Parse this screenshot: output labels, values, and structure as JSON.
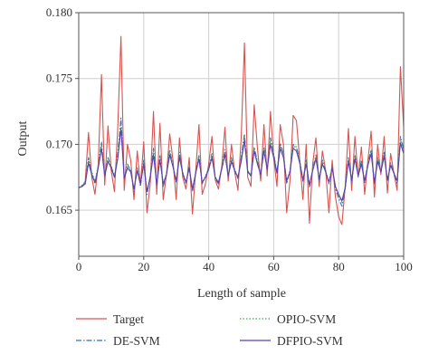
{
  "chart_data": {
    "type": "line",
    "xlabel": "Length of sample",
    "ylabel": "Output",
    "xlim": [
      0,
      100
    ],
    "ylim": [
      0.1615,
      0.18
    ],
    "x_ticks": [
      0,
      20,
      40,
      60,
      80,
      100
    ],
    "x_tick_labels": [
      "0",
      "20",
      "40",
      "60",
      "80",
      "100"
    ],
    "y_ticks": [
      0.165,
      0.17,
      0.175,
      0.18
    ],
    "y_tick_labels": [
      "0.165",
      "0.170",
      "0.175",
      "0.180"
    ],
    "grid": true,
    "legend_position": "bottom",
    "x": [
      0,
      1,
      2,
      3,
      4,
      5,
      6,
      7,
      8,
      9,
      10,
      11,
      12,
      13,
      14,
      15,
      16,
      17,
      18,
      19,
      20,
      21,
      22,
      23,
      24,
      25,
      26,
      27,
      28,
      29,
      30,
      31,
      32,
      33,
      34,
      35,
      36,
      37,
      38,
      39,
      40,
      41,
      42,
      43,
      44,
      45,
      46,
      47,
      48,
      49,
      50,
      51,
      52,
      53,
      54,
      55,
      56,
      57,
      58,
      59,
      60,
      61,
      62,
      63,
      64,
      65,
      66,
      67,
      68,
      69,
      70,
      71,
      72,
      73,
      74,
      75,
      76,
      77,
      78,
      79,
      80,
      81,
      82,
      83,
      84,
      85,
      86,
      87,
      88,
      89,
      90,
      91,
      92,
      93,
      94,
      95,
      96,
      97,
      98,
      99,
      100
    ],
    "series": [
      {
        "name": "Target",
        "color": "#d9534f",
        "dash": "solid",
        "values": [
          0.1667,
          0.1668,
          0.1672,
          0.1709,
          0.1675,
          0.1662,
          0.1685,
          0.1753,
          0.1669,
          0.1714,
          0.168,
          0.1664,
          0.1712,
          0.1782,
          0.1665,
          0.17,
          0.1688,
          0.1658,
          0.1695,
          0.1669,
          0.1702,
          0.1648,
          0.167,
          0.1725,
          0.1662,
          0.1716,
          0.1658,
          0.1677,
          0.1708,
          0.1688,
          0.1658,
          0.1705,
          0.1675,
          0.1666,
          0.169,
          0.1647,
          0.168,
          0.1715,
          0.1662,
          0.167,
          0.1685,
          0.1706,
          0.1673,
          0.1666,
          0.1683,
          0.1713,
          0.1672,
          0.17,
          0.1679,
          0.1665,
          0.1705,
          0.1777,
          0.1675,
          0.1668,
          0.173,
          0.1697,
          0.1672,
          0.1715,
          0.1676,
          0.1725,
          0.169,
          0.1668,
          0.1715,
          0.17,
          0.1648,
          0.1672,
          0.1722,
          0.1718,
          0.1688,
          0.1658,
          0.17,
          0.164,
          0.1685,
          0.1705,
          0.1668,
          0.1695,
          0.168,
          0.1648,
          0.1688,
          0.166,
          0.1645,
          0.1639,
          0.1668,
          0.1712,
          0.1665,
          0.1706,
          0.1675,
          0.1698,
          0.1662,
          0.1688,
          0.171,
          0.166,
          0.17,
          0.1677,
          0.1706,
          0.1663,
          0.1693,
          0.1678,
          0.1665,
          0.1759,
          0.1713
        ]
      },
      {
        "name": "DE-SVM",
        "color": "#3a6db5",
        "dash": "dashdot",
        "values": [
          0.1667,
          0.1668,
          0.167,
          0.169,
          0.1678,
          0.167,
          0.1683,
          0.1702,
          0.1676,
          0.169,
          0.1683,
          0.1675,
          0.1693,
          0.172,
          0.1674,
          0.1685,
          0.168,
          0.1664,
          0.1682,
          0.1668,
          0.1688,
          0.1662,
          0.1676,
          0.1697,
          0.1668,
          0.1692,
          0.1668,
          0.1677,
          0.1696,
          0.1684,
          0.1671,
          0.1694,
          0.1678,
          0.167,
          0.1683,
          0.1664,
          0.1678,
          0.1692,
          0.167,
          0.1675,
          0.1682,
          0.1693,
          0.1674,
          0.167,
          0.1682,
          0.1696,
          0.1676,
          0.169,
          0.168,
          0.1674,
          0.169,
          0.1708,
          0.168,
          0.1676,
          0.1698,
          0.1687,
          0.1677,
          0.1698,
          0.1681,
          0.1705,
          0.1693,
          0.1678,
          0.1701,
          0.1693,
          0.167,
          0.168,
          0.17,
          0.1698,
          0.1688,
          0.1672,
          0.1688,
          0.1667,
          0.1681,
          0.1692,
          0.1673,
          0.1688,
          0.168,
          0.167,
          0.1683,
          0.1666,
          0.1659,
          0.1653,
          0.1666,
          0.169,
          0.1672,
          0.1692,
          0.1676,
          0.1688,
          0.1671,
          0.1686,
          0.1696,
          0.167,
          0.169,
          0.1679,
          0.1694,
          0.1672,
          0.1686,
          0.1678,
          0.167,
          0.1706,
          0.1696
        ]
      },
      {
        "name": "OPIO-SVM",
        "color": "#3fae49",
        "dash": "dot",
        "values": [
          0.1667,
          0.1669,
          0.1671,
          0.1688,
          0.1679,
          0.1672,
          0.1684,
          0.17,
          0.1677,
          0.1689,
          0.1684,
          0.1676,
          0.1691,
          0.1716,
          0.1675,
          0.1684,
          0.168,
          0.1666,
          0.1681,
          0.167,
          0.1687,
          0.1664,
          0.1676,
          0.1695,
          0.167,
          0.169,
          0.167,
          0.1678,
          0.1695,
          0.1684,
          0.1672,
          0.1692,
          0.1679,
          0.1671,
          0.1683,
          0.1666,
          0.1679,
          0.1691,
          0.1671,
          0.1676,
          0.1682,
          0.1692,
          0.1675,
          0.1671,
          0.1682,
          0.1694,
          0.1677,
          0.1689,
          0.1681,
          0.1675,
          0.1689,
          0.1706,
          0.168,
          0.1677,
          0.1697,
          0.1687,
          0.1678,
          0.1697,
          0.1682,
          0.1703,
          0.1692,
          0.1679,
          0.1699,
          0.1692,
          0.1672,
          0.168,
          0.1699,
          0.1697,
          0.1688,
          0.1673,
          0.1687,
          0.1669,
          0.1681,
          0.1691,
          0.1674,
          0.1687,
          0.168,
          0.1671,
          0.1683,
          0.1668,
          0.1661,
          0.1656,
          0.1667,
          0.1689,
          0.1673,
          0.1691,
          0.1677,
          0.1687,
          0.1672,
          0.1686,
          0.1695,
          0.1671,
          0.1689,
          0.168,
          0.1693,
          0.1673,
          0.1685,
          0.1679,
          0.1672,
          0.1704,
          0.1695
        ]
      },
      {
        "name": "DFPIO-SVM",
        "color": "#5b3fb3",
        "dash": "solid",
        "values": [
          0.1667,
          0.1668,
          0.167,
          0.1686,
          0.1677,
          0.1671,
          0.1682,
          0.1697,
          0.1676,
          0.1687,
          0.1682,
          0.1675,
          0.1689,
          0.1712,
          0.1674,
          0.1682,
          0.1679,
          0.1666,
          0.168,
          0.167,
          0.1685,
          0.1664,
          0.1675,
          0.1692,
          0.167,
          0.1688,
          0.167,
          0.1677,
          0.1692,
          0.1683,
          0.1672,
          0.169,
          0.1678,
          0.1671,
          0.1682,
          0.1666,
          0.1678,
          0.1689,
          0.1671,
          0.1675,
          0.1681,
          0.169,
          0.1675,
          0.1671,
          0.1681,
          0.1692,
          0.1676,
          0.1687,
          0.168,
          0.1675,
          0.1687,
          0.1703,
          0.1679,
          0.1676,
          0.1695,
          0.1685,
          0.1677,
          0.1695,
          0.1681,
          0.17,
          0.169,
          0.1678,
          0.1697,
          0.169,
          0.1672,
          0.1679,
          0.1697,
          0.1695,
          0.1686,
          0.1673,
          0.1685,
          0.1669,
          0.168,
          0.1689,
          0.1674,
          0.1685,
          0.1679,
          0.1671,
          0.1682,
          0.1668,
          0.1662,
          0.1657,
          0.1667,
          0.1687,
          0.1673,
          0.1689,
          0.1676,
          0.1685,
          0.1672,
          0.1684,
          0.1693,
          0.1671,
          0.1687,
          0.1679,
          0.1691,
          0.1673,
          0.1684,
          0.1678,
          0.1672,
          0.1701,
          0.1693
        ]
      }
    ]
  }
}
